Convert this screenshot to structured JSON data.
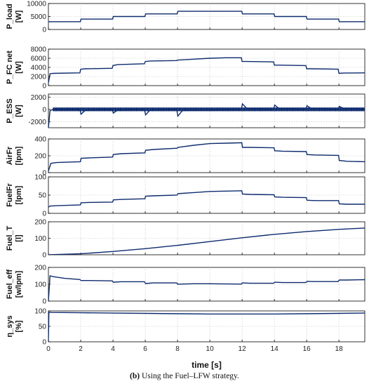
{
  "caption": {
    "label": "(b)",
    "text": " Using the Fuel–LFW strategy."
  },
  "style": {
    "line_color": "#0d2b6e",
    "grid_color": "#bdbdbd"
  },
  "chart_data": {
    "type": "line",
    "xlabel": "time [s]",
    "xlim": [
      0,
      19.6
    ],
    "xticks": [
      0,
      2,
      4,
      6,
      8,
      10,
      12,
      14,
      16,
      18
    ],
    "panels": [
      {
        "ylabel_lines": [
          "P_load",
          "[W]"
        ],
        "ylim": [
          0,
          10000
        ],
        "yticks": [
          0,
          5000,
          10000
        ],
        "x": [
          0,
          1.98,
          2.02,
          3.98,
          4.02,
          5.98,
          6.02,
          7.98,
          8.02,
          11.98,
          12.02,
          13.98,
          14.02,
          15.98,
          16.02,
          17.98,
          18.02,
          19.6
        ],
        "y": [
          3000,
          3000,
          4000,
          4000,
          5000,
          5000,
          6000,
          6000,
          7000,
          7000,
          6000,
          6000,
          5000,
          5000,
          4000,
          4000,
          3000,
          3000
        ]
      },
      {
        "ylabel_lines": [
          "P_FC net",
          "[W]"
        ],
        "ylim": [
          0,
          8000
        ],
        "yticks": [
          0,
          2000,
          4000,
          6000,
          8000
        ],
        "x": [
          0,
          0.1,
          0.3,
          1.95,
          2.0,
          2.3,
          3.95,
          4.0,
          4.3,
          5.95,
          6.0,
          6.3,
          7.95,
          8.0,
          9.0,
          10.0,
          11.0,
          11.95,
          12.0,
          12.3,
          13.95,
          14.0,
          14.3,
          15.95,
          16.0,
          16.3,
          17.95,
          18.0,
          18.3,
          19.6
        ],
        "y": [
          600,
          2600,
          2700,
          2800,
          3600,
          3700,
          3800,
          4400,
          4600,
          4800,
          5300,
          5400,
          5500,
          5600,
          5800,
          6000,
          6100,
          6100,
          5300,
          5300,
          5200,
          4500,
          4500,
          4400,
          3700,
          3700,
          3600,
          2700,
          2750,
          2800
        ]
      },
      {
        "ylabel_lines": [
          "P_ESS",
          "[W]"
        ],
        "ylim": [
          -3000,
          2500
        ],
        "yticks": [
          -2000,
          0,
          2000
        ],
        "x": [
          0,
          0.1,
          0.3,
          1.95,
          2.02,
          2.3,
          3.95,
          4.02,
          4.3,
          5.95,
          6.02,
          6.3,
          7.95,
          8.02,
          8.3,
          11.95,
          12.02,
          12.3,
          13.95,
          14.02,
          14.3,
          15.95,
          16.02,
          16.3,
          17.95,
          18.02,
          18.3,
          19.6
        ],
        "y": [
          -3000,
          -200,
          0,
          0,
          -800,
          -100,
          0,
          -600,
          -100,
          0,
          -900,
          -100,
          0,
          -1100,
          -200,
          0,
          900,
          100,
          0,
          700,
          100,
          0,
          600,
          100,
          0,
          500,
          100,
          0
        ]
      },
      {
        "ylabel_lines": [
          "AirFr",
          "[lpm]"
        ],
        "ylim": [
          0,
          400
        ],
        "yticks": [
          0,
          200,
          400
        ],
        "x": [
          0,
          0.15,
          0.5,
          1.98,
          2.02,
          2.5,
          3.98,
          4.02,
          4.5,
          5.98,
          6.02,
          6.5,
          7.98,
          8.02,
          9.0,
          10.0,
          11.0,
          11.98,
          12.02,
          12.5,
          13.98,
          14.02,
          14.5,
          15.98,
          16.02,
          16.5,
          17.98,
          18.02,
          18.5,
          19.6
        ],
        "y": [
          20,
          110,
          120,
          130,
          170,
          175,
          185,
          215,
          225,
          235,
          265,
          275,
          290,
          300,
          325,
          345,
          350,
          355,
          300,
          300,
          295,
          260,
          255,
          250,
          215,
          210,
          205,
          145,
          135,
          130
        ]
      },
      {
        "ylabel_lines": [
          "FuelFr",
          "[lpm]"
        ],
        "ylim": [
          0,
          100
        ],
        "yticks": [
          0,
          50,
          100
        ],
        "x": [
          0,
          0.1,
          0.5,
          1.98,
          2.02,
          2.5,
          3.98,
          4.02,
          4.5,
          5.98,
          6.02,
          6.5,
          7.98,
          8.02,
          9.0,
          10.0,
          11.0,
          11.98,
          12.02,
          12.5,
          13.98,
          14.02,
          14.5,
          15.98,
          16.02,
          16.5,
          17.98,
          18.02,
          18.5,
          19.6
        ],
        "y": [
          17,
          20,
          21,
          23,
          29,
          30,
          31,
          37,
          38,
          40,
          47,
          48,
          50,
          54,
          57,
          60,
          61,
          62,
          53,
          52,
          51,
          45,
          44,
          43,
          36,
          35,
          35,
          26,
          25,
          25
        ]
      },
      {
        "ylabel_lines": [
          "Fuel_T",
          "[l]"
        ],
        "ylim": [
          0,
          200
        ],
        "yticks": [
          0,
          100,
          200
        ],
        "x": [
          0,
          2,
          4,
          6,
          8,
          10,
          12,
          14,
          16,
          18,
          19.6
        ],
        "y": [
          0,
          6,
          20,
          37,
          57,
          80,
          103,
          124,
          141,
          154,
          162
        ]
      },
      {
        "ylabel_lines": [
          "Fuel_eff",
          "[w/lpm]"
        ],
        "ylim": [
          0,
          200
        ],
        "yticks": [
          0,
          100,
          200
        ],
        "x": [
          0,
          0.1,
          0.3,
          1.0,
          1.95,
          2.02,
          2.5,
          3.95,
          4.02,
          4.5,
          5.95,
          6.02,
          6.5,
          7.95,
          8.02,
          9.0,
          10.0,
          11.95,
          12.02,
          12.5,
          13.95,
          14.02,
          14.5,
          15.95,
          16.02,
          16.5,
          17.95,
          18.02,
          18.5,
          19.6
        ],
        "y": [
          0,
          150,
          145,
          135,
          128,
          122,
          122,
          120,
          112,
          115,
          115,
          104,
          108,
          108,
          100,
          103,
          103,
          101,
          108,
          106,
          106,
          112,
          110,
          110,
          117,
          116,
          116,
          125,
          125,
          127
        ]
      },
      {
        "ylabel_lines": [
          "η_sys",
          "[%]"
        ],
        "ylim": [
          0,
          100
        ],
        "yticks": [
          0,
          50,
          100
        ],
        "x": [
          0,
          0.03,
          0.2,
          2,
          4,
          6,
          8,
          10,
          12,
          14,
          16,
          18,
          19.6
        ],
        "y": [
          0,
          96,
          95,
          94,
          93,
          92,
          91,
          90,
          90,
          90,
          91,
          92,
          93
        ]
      }
    ]
  }
}
